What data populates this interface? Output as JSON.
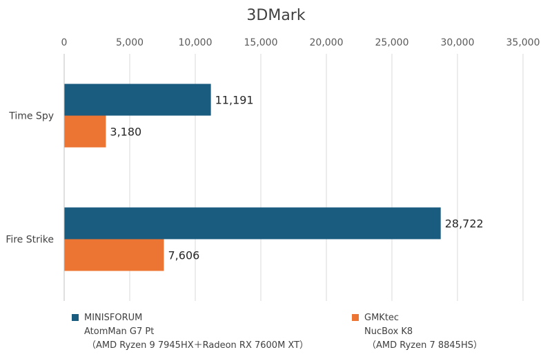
{
  "chart_data": {
    "type": "bar",
    "orientation": "horizontal",
    "title": "3DMark",
    "categories": [
      "Time Spy",
      "Fire Strike"
    ],
    "series": [
      {
        "name": "MINISFORUM AtomMan G7 Pt （AMD Ryzen 9 7945HX＋Radeon RX 7600M XT）",
        "legend_lines": [
          "MINISFORUM",
          "AtomMan G7 Pt",
          "（AMD Ryzen 9 7945HX＋Radeon RX 7600M XT）"
        ],
        "color": "#1a5c80",
        "values": [
          11191,
          28722
        ],
        "labels": [
          "11,191",
          "28,722"
        ]
      },
      {
        "name": "GMKtec NucBox K8 （AMD Ryzen 7 8845HS）",
        "legend_lines": [
          "GMKtec",
          "NucBox K8",
          "（AMD Ryzen 7 8845HS）"
        ],
        "color": "#ec7533",
        "values": [
          3180,
          7606
        ],
        "labels": [
          "3,180",
          "7,606"
        ]
      }
    ],
    "x_ticks": [
      0,
      5000,
      10000,
      15000,
      20000,
      25000,
      30000,
      35000
    ],
    "x_tick_labels": [
      "0",
      "5,000",
      "10,000",
      "15,000",
      "20,000",
      "25,000",
      "30,000",
      "35,000"
    ],
    "xlim": [
      0,
      35000
    ],
    "x_axis_position": "top",
    "grid": true,
    "legend_position": "bottom"
  }
}
